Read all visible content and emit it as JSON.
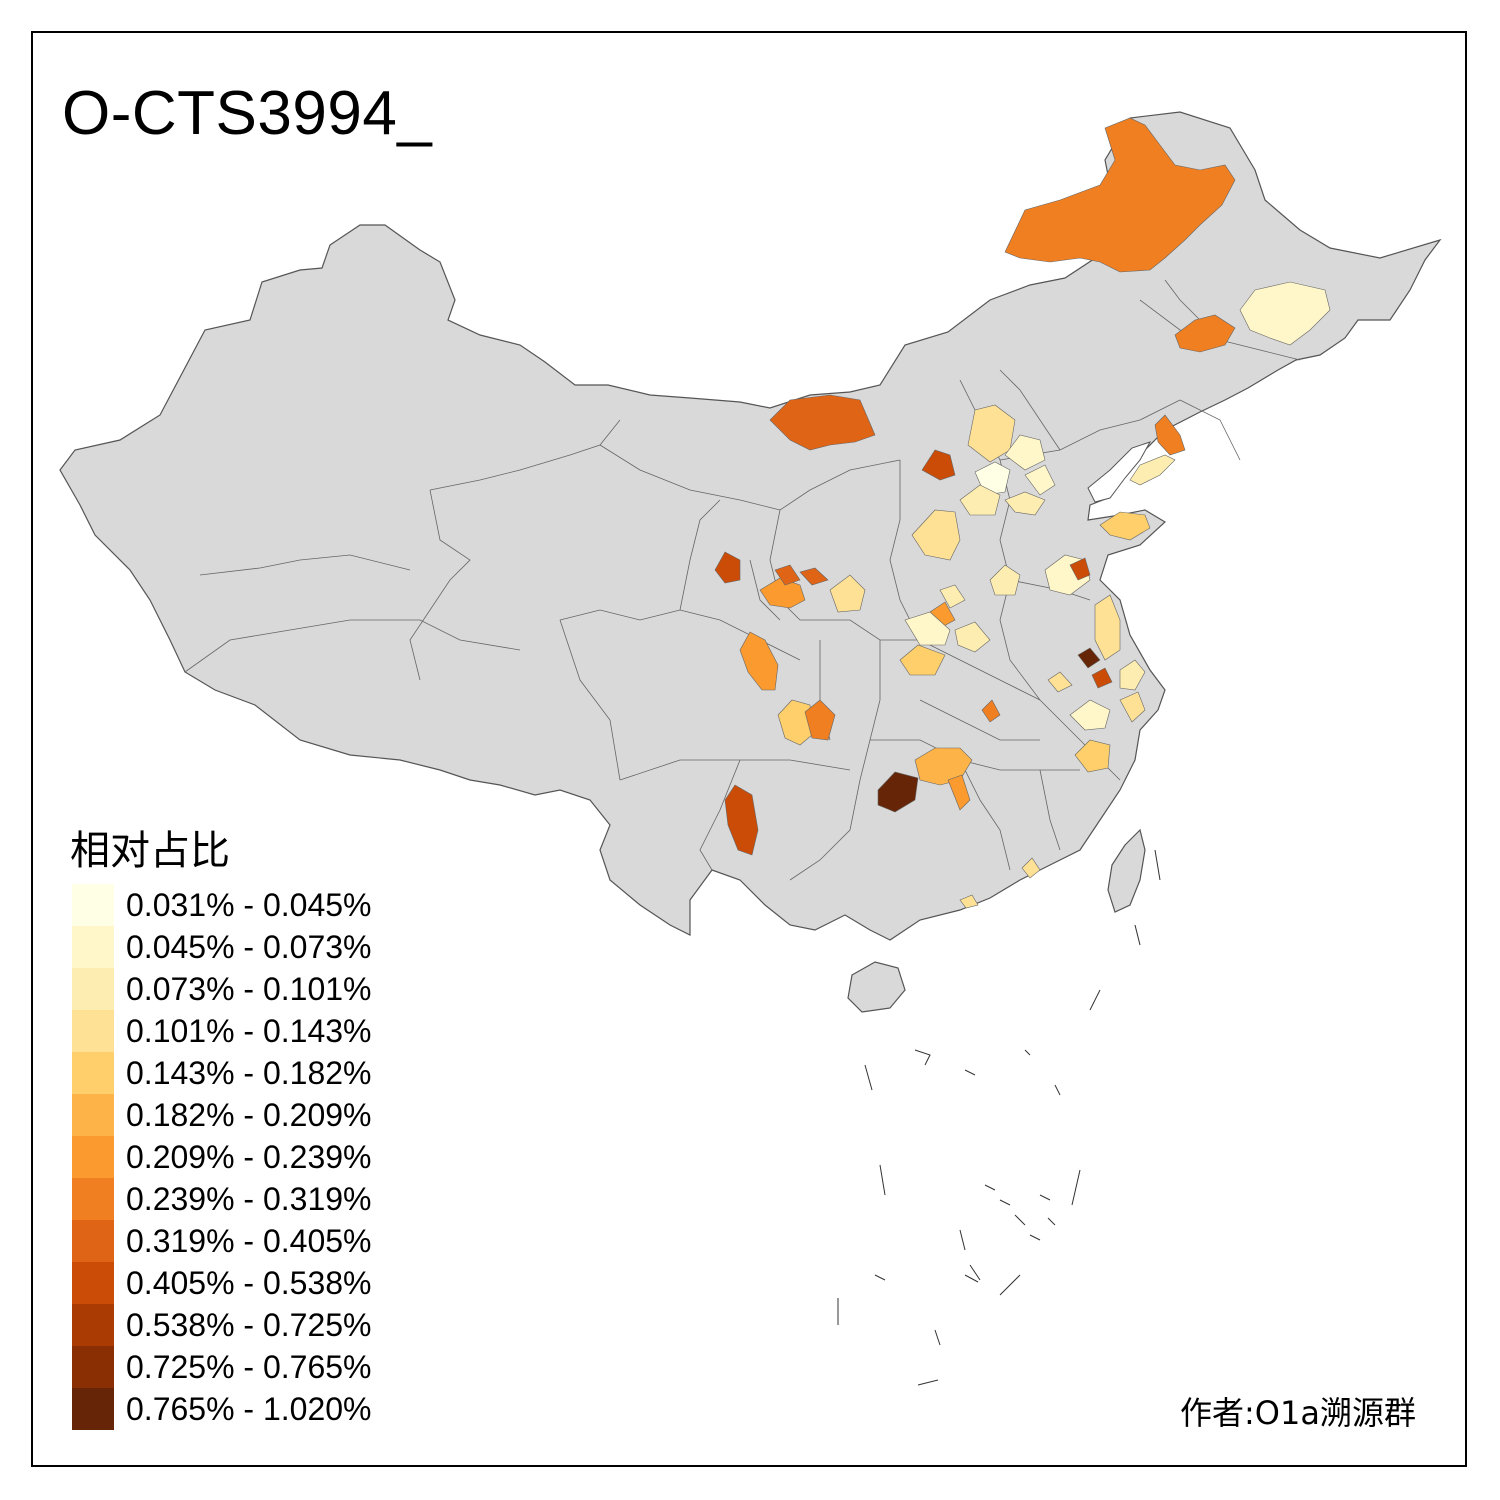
{
  "title": "O-CTS3994_",
  "legend": {
    "title": "相对占比",
    "bins": [
      {
        "label": "0.031% - 0.045%",
        "color": "#FFFFE5"
      },
      {
        "label": "0.045% - 0.073%",
        "color": "#FFF7C9"
      },
      {
        "label": "0.073% - 0.101%",
        "color": "#FEEDB0"
      },
      {
        "label": "0.101% - 0.143%",
        "color": "#FEE194"
      },
      {
        "label": "0.143% - 0.182%",
        "color": "#FECF6A"
      },
      {
        "label": "0.182% - 0.209%",
        "color": "#FDB347"
      },
      {
        "label": "0.209% - 0.239%",
        "color": "#FA9A2F"
      },
      {
        "label": "0.239% - 0.319%",
        "color": "#F07F22"
      },
      {
        "label": "0.319% - 0.405%",
        "color": "#E06416"
      },
      {
        "label": "0.405% - 0.538%",
        "color": "#CB4C07"
      },
      {
        "label": "0.538% - 0.725%",
        "color": "#A93B03"
      },
      {
        "label": "0.725% - 0.765%",
        "color": "#8A2F04"
      },
      {
        "label": "0.765% - 1.020%",
        "color": "#662506"
      }
    ]
  },
  "credit": "作者:O1a溯源群",
  "colors": {
    "no_data": "#D9D9D9",
    "border": "#555555"
  }
}
